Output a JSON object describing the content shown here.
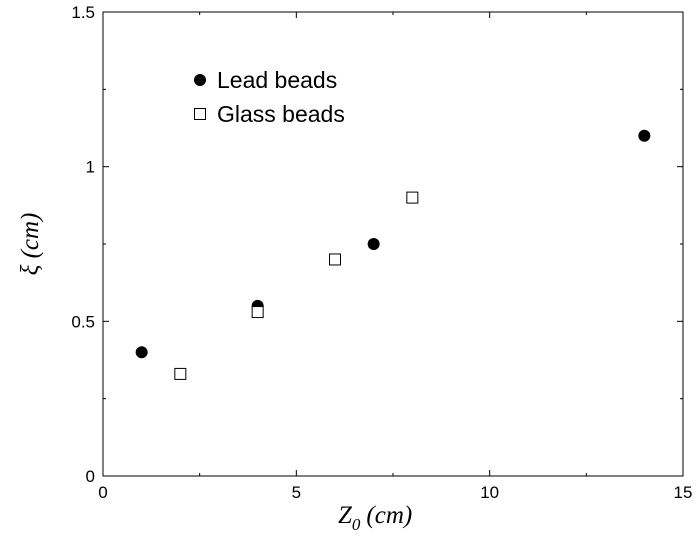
{
  "chart_data": {
    "type": "scatter",
    "xlabel": "Z",
    "xlabel_sub": "0",
    "xlabel_unit": "(cm)",
    "ylabel": "ξ (cm)",
    "xlim": [
      0,
      15
    ],
    "ylim": [
      0,
      1.5
    ],
    "xticks": [
      "0",
      "5",
      "10",
      "15"
    ],
    "yticks": [
      "0",
      "0.5",
      "1",
      "1.5"
    ],
    "grid": false,
    "legend_position": "top-left",
    "series": [
      {
        "name": "Lead beads",
        "marker": "filled-circle",
        "color": "#000000",
        "points": [
          [
            1,
            0.4
          ],
          [
            4,
            0.55
          ],
          [
            7,
            0.75
          ],
          [
            14,
            1.1
          ]
        ]
      },
      {
        "name": "Glass beads",
        "marker": "open-square",
        "color": "#000000",
        "points": [
          [
            2,
            0.33
          ],
          [
            4,
            0.53
          ],
          [
            6,
            0.7
          ],
          [
            8,
            0.9
          ]
        ]
      }
    ]
  }
}
